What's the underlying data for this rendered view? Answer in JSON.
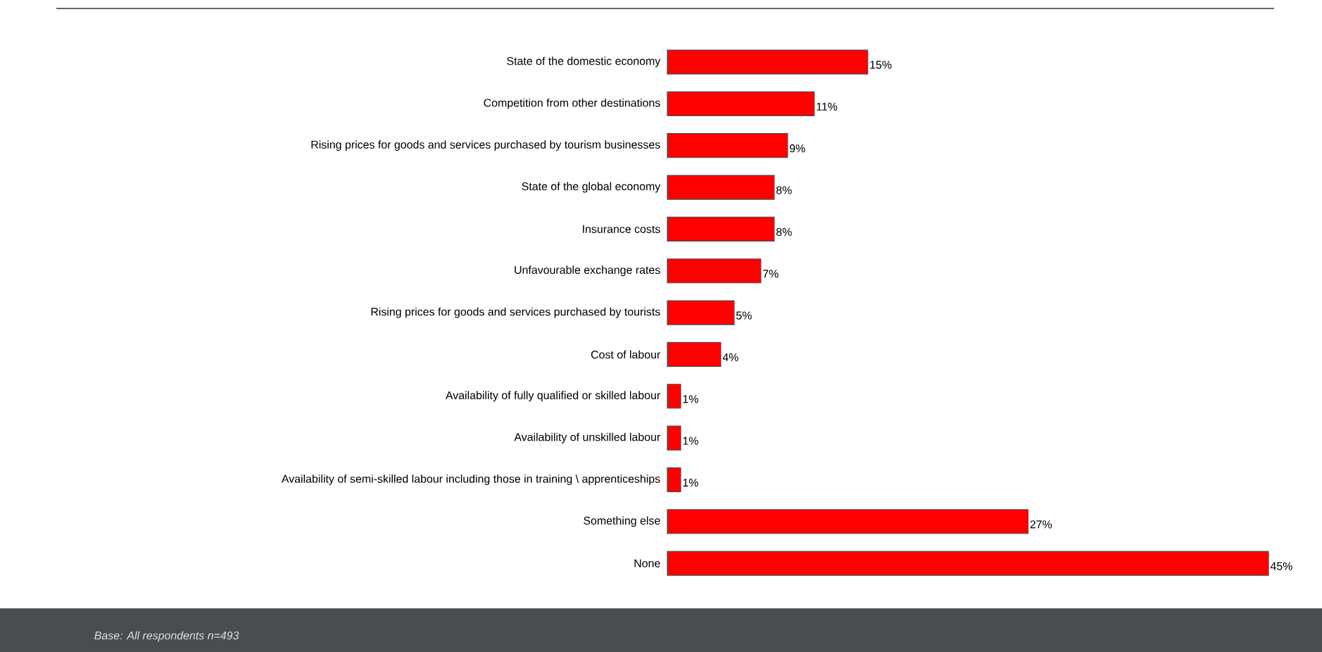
{
  "chart_data": {
    "type": "bar",
    "orientation": "horizontal",
    "categories": [
      "State of the domestic economy",
      "Competition from other destinations",
      "Rising prices for goods and services purchased by tourism businesses",
      "State of the global economy",
      "Insurance costs",
      "Unfavourable exchange rates",
      "Rising prices for goods and services purchased by tourists",
      "Cost of labour",
      "Availability of fully qualified or skilled labour",
      "Availability of unskilled labour",
      "Availability of semi-skilled labour including those in training \\ apprenticeships",
      "Something else",
      "None"
    ],
    "values": [
      15,
      11,
      9,
      8,
      8,
      7,
      5,
      4,
      1,
      1,
      1,
      27,
      45
    ],
    "value_labels": [
      "15%",
      "11%",
      "9%",
      "8%",
      "8%",
      "7%",
      "5%",
      "4%",
      "1%",
      "1%",
      "1%",
      "27%",
      "45%"
    ],
    "color": "#ff0000",
    "annotations": [
      "Base: All respondents n=493"
    ]
  }
}
